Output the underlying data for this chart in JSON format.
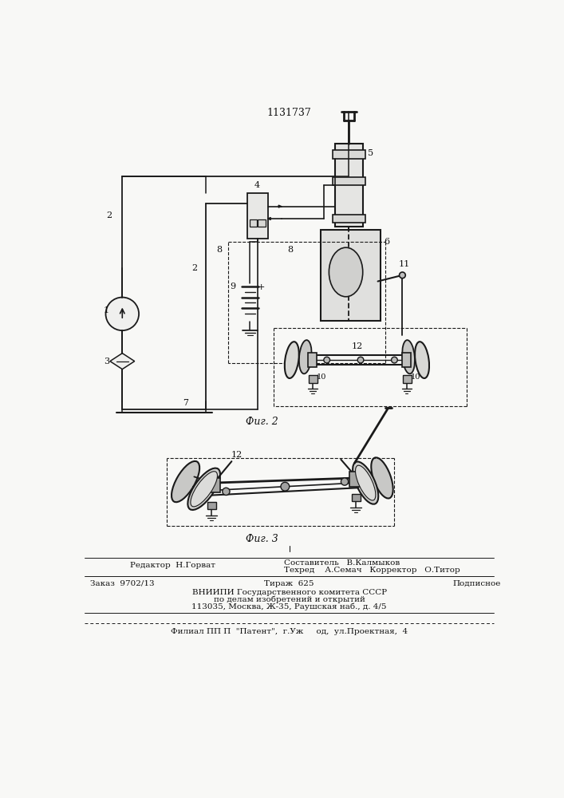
{
  "title": "1131737",
  "fig2_label": "Фиг. 2",
  "fig3_label": "Фиг. 3",
  "bg_color": "#f8f8f6",
  "line_color": "#1a1a1a"
}
